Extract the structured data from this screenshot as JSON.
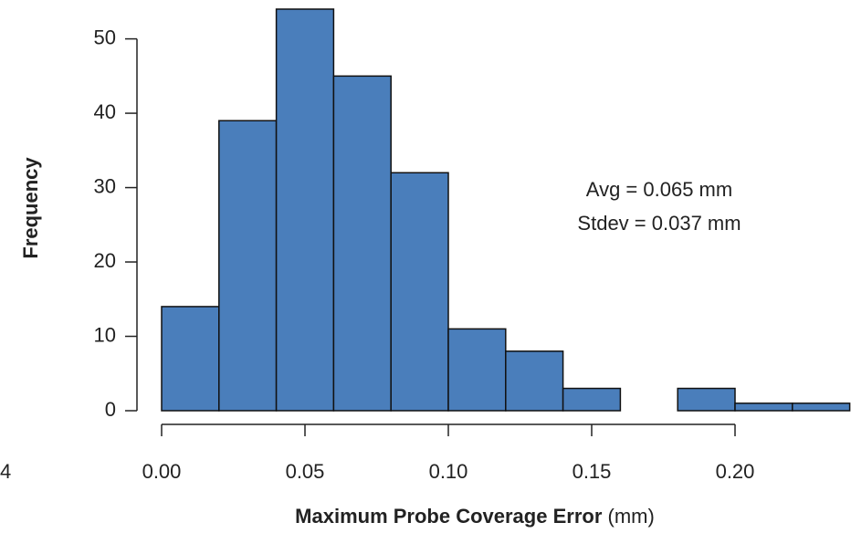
{
  "chart_data": {
    "type": "histogram",
    "bins": [
      0,
      0.02,
      0.04,
      0.06,
      0.08,
      0.1,
      0.12,
      0.14,
      0.16,
      0.18,
      0.2,
      0.22,
      0.24
    ],
    "values": [
      14,
      39,
      54,
      45,
      32,
      11,
      8,
      3,
      0,
      3,
      1,
      1
    ],
    "color": "#4a7ebb",
    "xlim": [
      0,
      0.24
    ],
    "ylim": [
      0,
      54
    ],
    "xticks": [
      {
        "value": 0,
        "label": "0.00"
      },
      0.05,
      {
        "value": 0.1,
        "label": "0.10"
      },
      0.15,
      {
        "value": 0.2,
        "label": "0.20"
      }
    ],
    "yticks": [
      0,
      10,
      20,
      30,
      40,
      50
    ],
    "xlabel": "Maximum Probe Coverage Error",
    "xlabel_unit": "(mm)",
    "ylabel": "Frequency",
    "annotations": [
      "Avg = 0.065 mm",
      "Stdev = 0.037 mm"
    ],
    "clipped_text": "4"
  }
}
